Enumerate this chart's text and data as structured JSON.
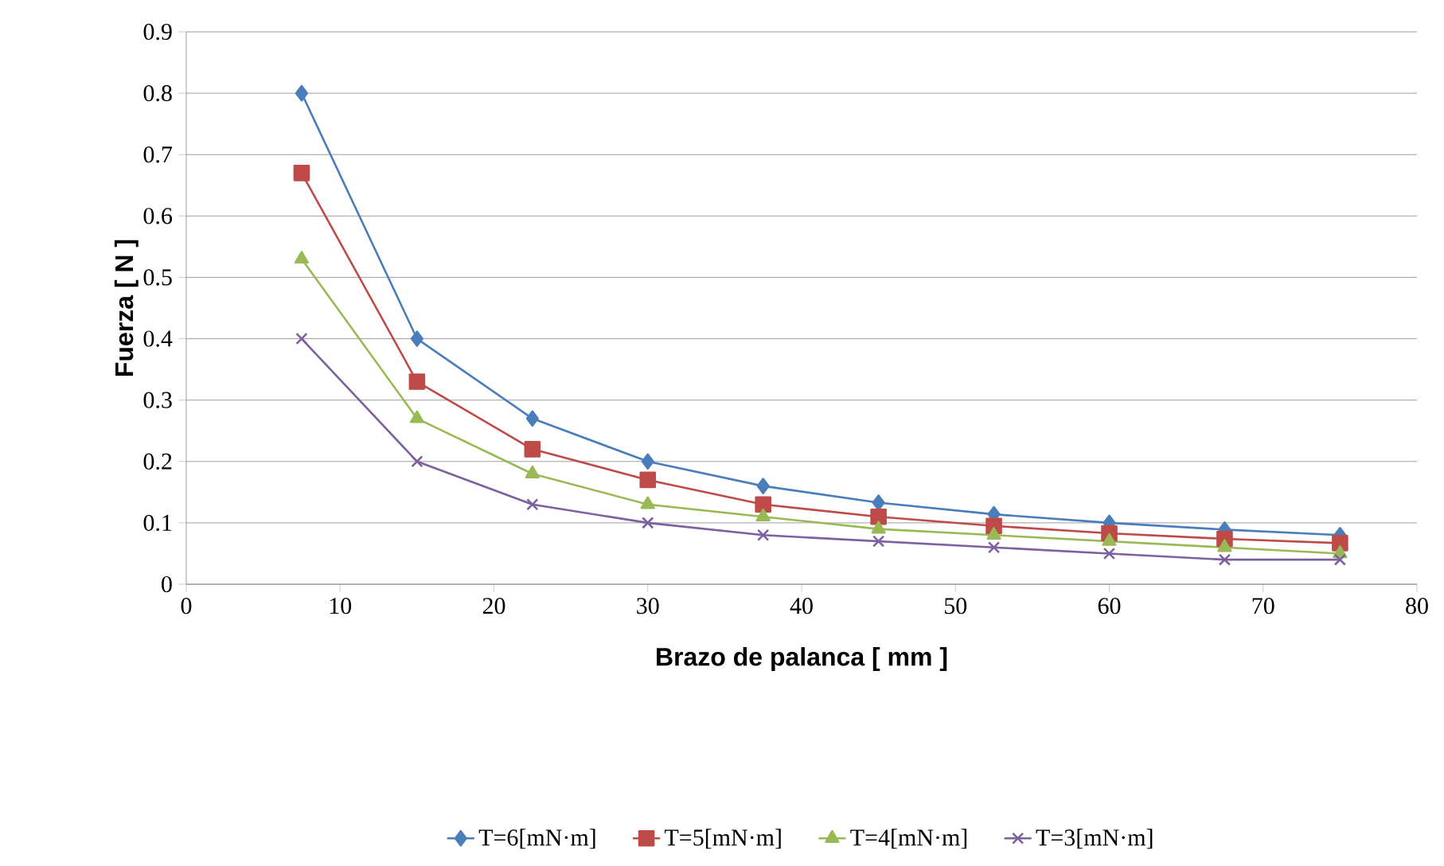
{
  "chart_data": {
    "type": "line",
    "xlabel": "Brazo de palanca [ mm ]",
    "ylabel": "Fuerza [ N ]",
    "x": [
      7.5,
      15,
      22.5,
      30,
      37.5,
      45,
      52.5,
      60,
      67.5,
      75
    ],
    "series": [
      {
        "name": "T=6[mN·m]",
        "color": "#4a7ebb",
        "marker": "diamond",
        "values": [
          0.8,
          0.4,
          0.27,
          0.2,
          0.16,
          0.133,
          0.114,
          0.1,
          0.089,
          0.08
        ]
      },
      {
        "name": "T=5[mN·m]",
        "color": "#be4b48",
        "marker": "square",
        "values": [
          0.67,
          0.33,
          0.22,
          0.17,
          0.13,
          0.11,
          0.095,
          0.083,
          0.074,
          0.067
        ]
      },
      {
        "name": "T=4[mN·m]",
        "color": "#98b954",
        "marker": "triangle",
        "values": [
          0.53,
          0.27,
          0.18,
          0.13,
          0.11,
          0.09,
          0.08,
          0.07,
          0.06,
          0.05
        ]
      },
      {
        "name": "T=3[mN·m]",
        "color": "#7d60a0",
        "marker": "cross",
        "values": [
          0.4,
          0.2,
          0.13,
          0.1,
          0.08,
          0.07,
          0.06,
          0.05,
          0.04,
          0.04
        ]
      }
    ],
    "xlim": [
      0,
      80
    ],
    "xticks": [
      0,
      10,
      20,
      30,
      40,
      50,
      60,
      70,
      80
    ],
    "ylim": [
      0,
      0.9
    ],
    "yticks": [
      0,
      0.1,
      0.2,
      0.3,
      0.4,
      0.5,
      0.6,
      0.7,
      0.8,
      0.9
    ],
    "grid": "y",
    "legend": "bottom",
    "line_style": "solid"
  }
}
